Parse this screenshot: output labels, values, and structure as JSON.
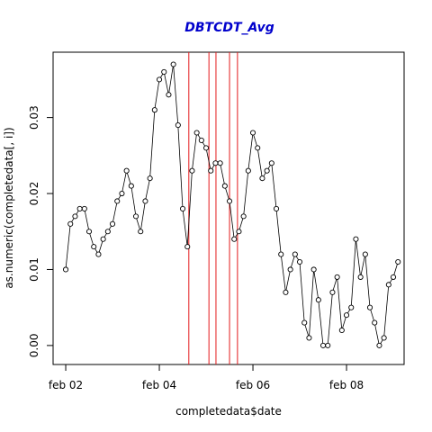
{
  "chart_data": {
    "type": "line",
    "title": "DBTCDT_Avg",
    "x_label": "completedata$date",
    "y_label": "as.numeric(completedata[, i])",
    "x": [
      2.0,
      2.1,
      2.2,
      2.3,
      2.4,
      2.5,
      2.6,
      2.7,
      2.8,
      2.9,
      3.0,
      3.1,
      3.2,
      3.3,
      3.4,
      3.5,
      3.6,
      3.7,
      3.8,
      3.9,
      4.0,
      4.1,
      4.2,
      4.3,
      4.4,
      4.5,
      4.6,
      4.7,
      4.8,
      4.9,
      5.0,
      5.1,
      5.2,
      5.3,
      5.4,
      5.5,
      5.6,
      5.7,
      5.8,
      5.9,
      6.0,
      6.1,
      6.2,
      6.3,
      6.4,
      6.5,
      6.6,
      6.7,
      6.8,
      6.9,
      7.0,
      7.1,
      7.2,
      7.3,
      7.4,
      7.5,
      7.6,
      7.7,
      7.8,
      7.9,
      8.0,
      8.1,
      8.2,
      8.3,
      8.4,
      8.5,
      8.6,
      8.7,
      8.8,
      8.9,
      9.0,
      9.1
    ],
    "series": [
      {
        "color": "#000000",
        "values": [
          0.01,
          0.016,
          0.017,
          0.018,
          0.018,
          0.015,
          0.013,
          0.012,
          0.014,
          0.015,
          0.016,
          0.019,
          0.02,
          0.023,
          0.021,
          0.017,
          0.015,
          0.019,
          0.022,
          0.031,
          0.035,
          0.036,
          0.033,
          0.037,
          0.029,
          0.018,
          0.013,
          0.023,
          0.028,
          0.027,
          0.026,
          0.023,
          0.024,
          0.024,
          0.021,
          0.019,
          0.014,
          0.015,
          0.017,
          0.023,
          0.028,
          0.026,
          0.022,
          0.023,
          0.024,
          0.018,
          0.012,
          0.007,
          0.01,
          0.012,
          0.011,
          0.003,
          0.001,
          0.01,
          0.006,
          0.0,
          0.0,
          0.007,
          0.009,
          0.002,
          0.004,
          0.005,
          0.014,
          0.009,
          0.012,
          0.005,
          0.003,
          0.0,
          0.001,
          0.008,
          0.009,
          0.011
        ]
      }
    ],
    "xlim": [
      1.73,
      9.23
    ],
    "ylim": [
      -0.0025,
      0.0386
    ],
    "xticks": [
      {
        "value": 2,
        "label": "feb 02"
      },
      {
        "value": 4,
        "label": "feb 04"
      },
      {
        "value": 6,
        "label": "feb 06"
      },
      {
        "value": 8,
        "label": "feb 08"
      }
    ],
    "yticks": [
      {
        "value": 0,
        "label": "0.00"
      },
      0.01,
      0.02,
      0.03
    ],
    "vlines": [
      4.63,
      5.06,
      5.21,
      5.5,
      5.67
    ],
    "vline_color": "#e41a1c",
    "title_color": "#0000cc"
  }
}
